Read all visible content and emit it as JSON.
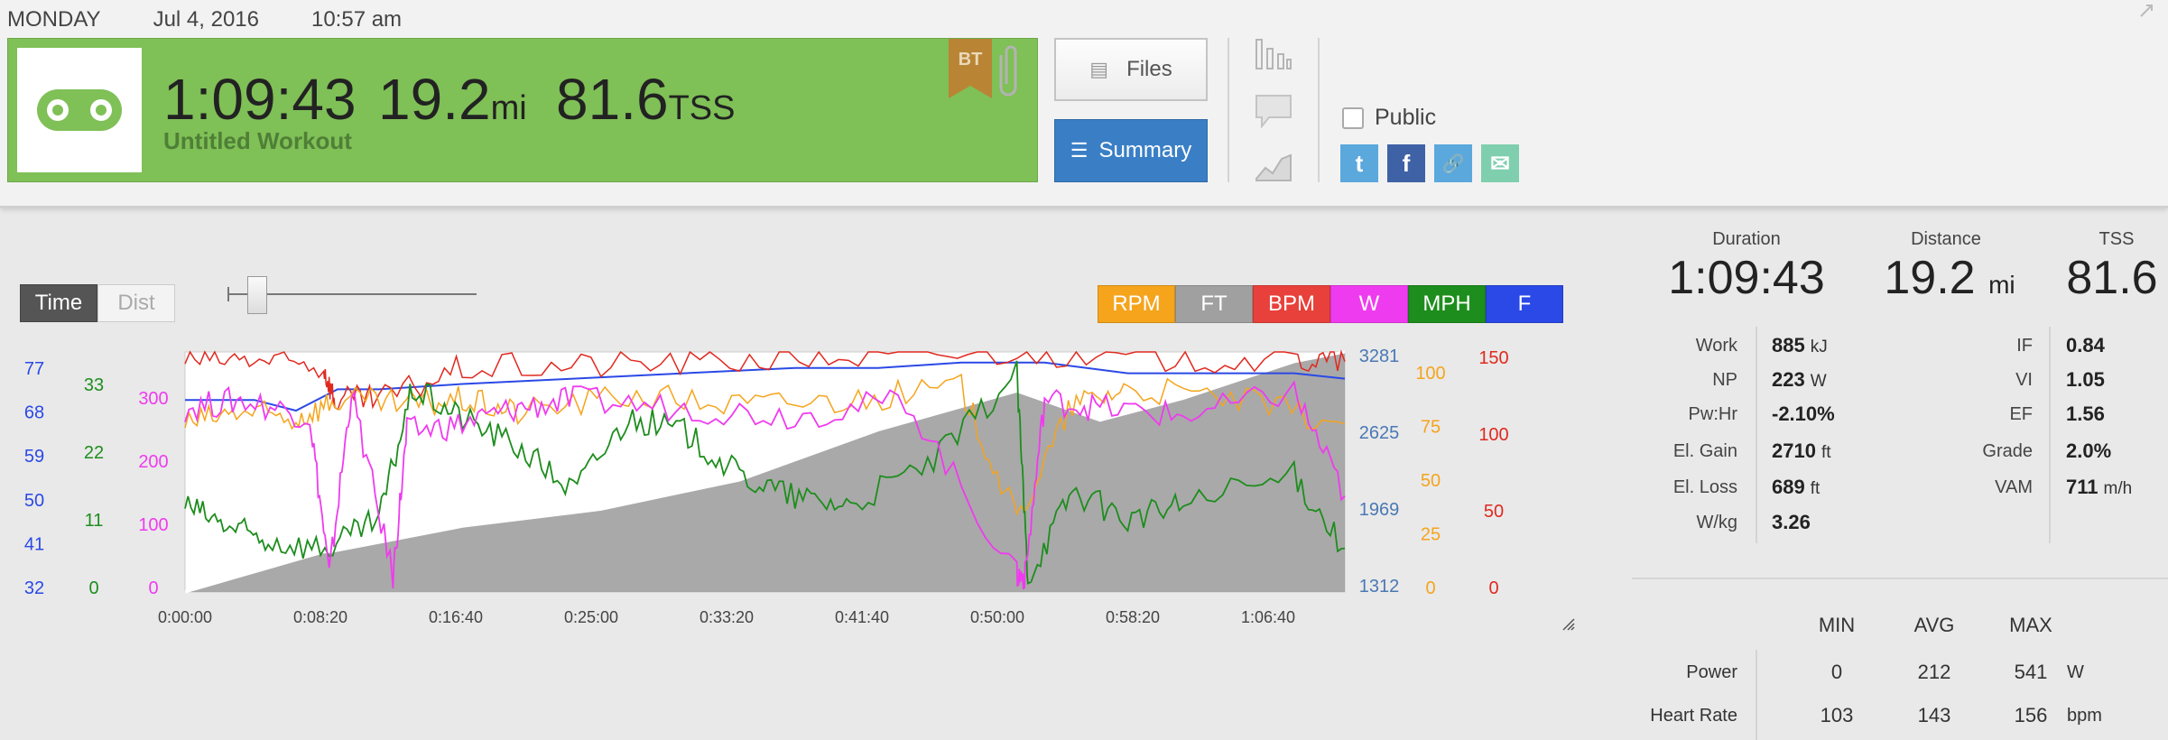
{
  "header": {
    "day": "MONDAY",
    "date": "Jul 4, 2016",
    "time": "10:57 am"
  },
  "workout": {
    "duration": "1:09:43",
    "distance_value": "19.2",
    "distance_unit": "mi",
    "tss_value": "81.6",
    "tss_unit": "TSS",
    "title": "Untitled Workout",
    "badge": "BT",
    "sport_icon": "bike-chain-icon"
  },
  "buttons": {
    "files": "Files",
    "summary": "Summary"
  },
  "share": {
    "public_label": "Public",
    "twitter": "t",
    "facebook": "f",
    "link": "🔗",
    "email": "✉"
  },
  "toggle": {
    "time": "Time",
    "dist": "Dist"
  },
  "legend": [
    {
      "label": "RPM",
      "color": "#f5a41c"
    },
    {
      "label": "FT",
      "color": "#a0a0a0"
    },
    {
      "label": "BPM",
      "color": "#e8403a"
    },
    {
      "label": "W",
      "color": "#ef3bef"
    },
    {
      "label": "MPH",
      "color": "#1d8d1d"
    },
    {
      "label": "F",
      "color": "#2b49e6"
    }
  ],
  "summary": {
    "duration_label": "Duration",
    "duration": "1:09:43",
    "distance_label": "Distance",
    "distance": "19.2",
    "distance_unit": "mi",
    "tss_label": "TSS",
    "tss": "81.6"
  },
  "metrics_left": [
    {
      "label": "Work",
      "value": "885",
      "unit": "kJ"
    },
    {
      "label": "NP",
      "value": "223",
      "unit": "W"
    },
    {
      "label": "Pw:Hr",
      "value": "-2.10%",
      "unit": ""
    },
    {
      "label": "El. Gain",
      "value": "2710",
      "unit": "ft"
    },
    {
      "label": "El. Loss",
      "value": "689",
      "unit": "ft"
    },
    {
      "label": "W/kg",
      "value": "3.26",
      "unit": ""
    }
  ],
  "metrics_right": [
    {
      "label": "IF",
      "value": "0.84",
      "unit": ""
    },
    {
      "label": "VI",
      "value": "1.05",
      "unit": ""
    },
    {
      "label": "EF",
      "value": "1.56",
      "unit": ""
    },
    {
      "label": "Grade",
      "value": "2.0%",
      "unit": ""
    },
    {
      "label": "VAM",
      "value": "711",
      "unit": "m/h"
    }
  ],
  "table": {
    "headers": [
      "MIN",
      "AVG",
      "MAX"
    ],
    "rows": [
      {
        "label": "Power",
        "min": "0",
        "avg": "212",
        "max": "541",
        "unit": "W"
      },
      {
        "label": "Heart Rate",
        "min": "103",
        "avg": "143",
        "max": "156",
        "unit": "bpm"
      }
    ]
  },
  "chart_data": {
    "type": "line",
    "x_ticks": [
      "0:00:00",
      "0:08:20",
      "0:16:40",
      "0:25:00",
      "0:33:20",
      "0:41:40",
      "0:50:00",
      "0:58:20",
      "1:06:40"
    ],
    "xlim_seconds": [
      0,
      4183
    ],
    "axes": {
      "F": [
        "77",
        "68",
        "59",
        "50",
        "41",
        "32"
      ],
      "MPH": [
        "33",
        "22",
        "11",
        "0"
      ],
      "W": [
        "300",
        "200",
        "100",
        "0"
      ],
      "FT": [
        "3281",
        "2625",
        "1969",
        "1312"
      ],
      "RPM": [
        "100",
        "75",
        "50",
        "25",
        "0"
      ],
      "BPM": [
        "150",
        "100",
        "50",
        "0"
      ]
    },
    "series": [
      {
        "name": "FT",
        "ylim": [
          1312,
          3281
        ],
        "x": [
          0,
          500,
          520,
          1000,
          1500,
          2000,
          2500,
          3000,
          3300,
          3600,
          4000,
          4183
        ],
        "values": [
          1312,
          1640,
          1640,
          1850,
          1990,
          2230,
          2640,
          2960,
          2720,
          2900,
          3200,
          3281
        ]
      },
      {
        "name": "BPM",
        "ylim": [
          0,
          150
        ],
        "x": [
          0,
          250,
          500,
          540,
          700,
          1000,
          1500,
          2000,
          2500,
          3000,
          3500,
          4000,
          4183
        ],
        "values": [
          145,
          145,
          140,
          120,
          120,
          140,
          142,
          145,
          148,
          150,
          146,
          145,
          144
        ]
      },
      {
        "name": "F",
        "ylim": [
          32,
          77
        ],
        "x": [
          0,
          250,
          400,
          550,
          700,
          1000,
          1400,
          1800,
          2200,
          2500,
          2800,
          3100,
          3400,
          3700,
          4000,
          4183
        ],
        "values": [
          68,
          68,
          66,
          70,
          70,
          71,
          72,
          73,
          74,
          74,
          75,
          75,
          73,
          73,
          73,
          72
        ]
      },
      {
        "name": "RPM",
        "ylim": [
          0,
          100
        ],
        "x": [
          0,
          200,
          400,
          540,
          800,
          1000,
          1200,
          1600,
          2000,
          2400,
          2800,
          3000,
          3200,
          3400,
          3800,
          4183
        ],
        "values": [
          70,
          75,
          72,
          80,
          78,
          80,
          75,
          82,
          78,
          80,
          85,
          30,
          78,
          85,
          80,
          70
        ]
      },
      {
        "name": "W",
        "ylim": [
          0,
          300
        ],
        "x": [
          0,
          200,
          450,
          520,
          600,
          750,
          800,
          1000,
          1200,
          1400,
          1800,
          2200,
          2600,
          3000,
          3030,
          3100,
          3300,
          3600,
          4000,
          4183
        ],
        "values": [
          230,
          240,
          220,
          20,
          250,
          20,
          200,
          210,
          230,
          240,
          230,
          220,
          240,
          20,
          20,
          240,
          230,
          220,
          250,
          120
        ]
      },
      {
        "name": "MPH",
        "ylim": [
          0,
          33
        ],
        "x": [
          0,
          150,
          300,
          520,
          700,
          820,
          1000,
          1200,
          1400,
          1600,
          1800,
          2000,
          2200,
          2400,
          2700,
          3000,
          3040,
          3200,
          3400,
          3600,
          4000,
          4183
        ],
        "values": [
          12,
          9,
          7,
          6,
          10,
          28,
          24,
          20,
          14,
          24,
          22,
          16,
          13,
          12,
          18,
          30,
          2,
          14,
          10,
          12,
          16,
          6
        ]
      }
    ]
  }
}
